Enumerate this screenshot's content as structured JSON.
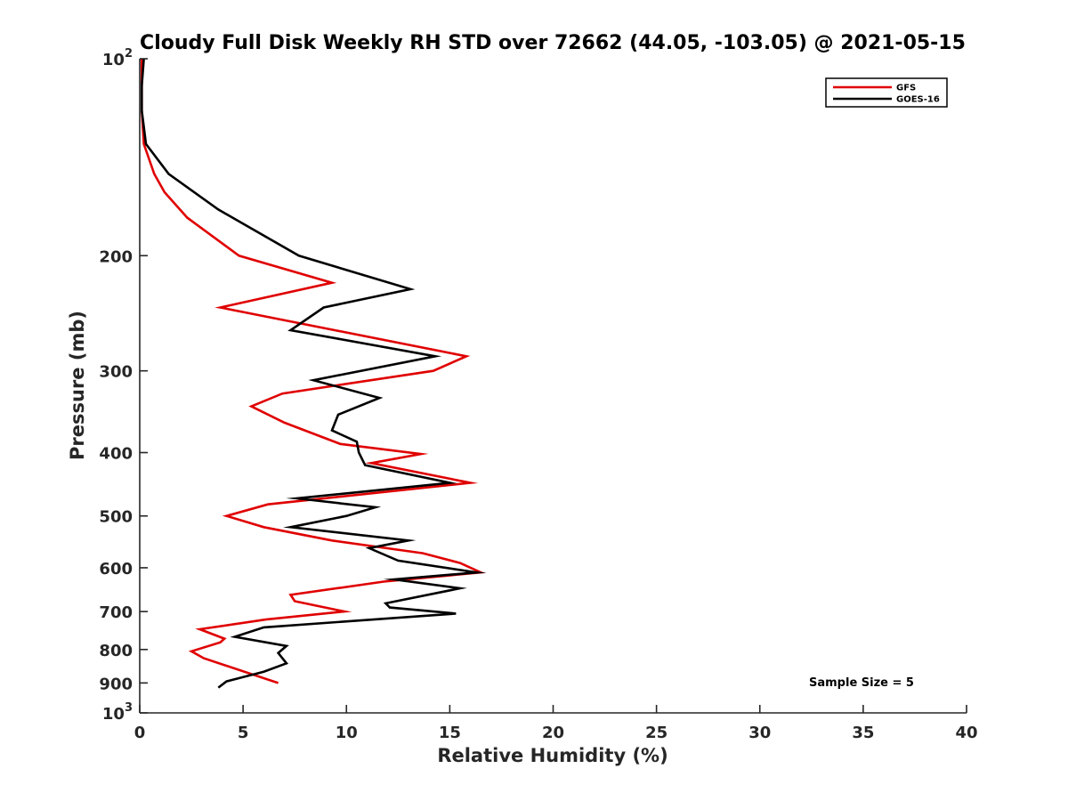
{
  "chart_data": {
    "type": "line",
    "title": "Cloudy Full Disk Weekly RH STD over 72662 (44.05, -103.05) @ 2021-05-15",
    "xlabel": "Relative Humidity (%)",
    "ylabel": "Pressure (mb)",
    "xlim": [
      0,
      40
    ],
    "ylim": [
      100,
      1000
    ],
    "yscale": "log",
    "y_reversed": true,
    "x_ticks": [
      0,
      5,
      10,
      15,
      20,
      25,
      30,
      35,
      40
    ],
    "x_tick_labels": [
      "0",
      "5",
      "10",
      "15",
      "20",
      "25",
      "30",
      "35",
      "40"
    ],
    "y_ticks": [
      100,
      200,
      300,
      400,
      500,
      600,
      700,
      800,
      900,
      1000
    ],
    "y_tick_labels": [
      {
        "base": "10",
        "sup": "2"
      },
      {
        "base": "200",
        "sup": ""
      },
      {
        "base": "300",
        "sup": ""
      },
      {
        "base": "400",
        "sup": ""
      },
      {
        "base": "500",
        "sup": ""
      },
      {
        "base": "600",
        "sup": ""
      },
      {
        "base": "700",
        "sup": ""
      },
      {
        "base": "800",
        "sup": ""
      },
      {
        "base": "900",
        "sup": ""
      },
      {
        "base": "10",
        "sup": "3"
      }
    ],
    "grid": false,
    "legend_position": "top-right",
    "annotation": "Sample Size = 5",
    "series": [
      {
        "name": "GFS",
        "color": "#e00000",
        "points": [
          [
            0.1,
            100
          ],
          [
            0.1,
            110
          ],
          [
            0.1,
            120
          ],
          [
            0.2,
            135
          ],
          [
            0.7,
            150
          ],
          [
            1.2,
            160
          ],
          [
            2.3,
            175
          ],
          [
            4.8,
            200
          ],
          [
            9.3,
            220
          ],
          [
            3.9,
            240
          ],
          [
            15.8,
            285
          ],
          [
            14.2,
            300
          ],
          [
            6.9,
            325
          ],
          [
            5.4,
            340
          ],
          [
            7.0,
            360
          ],
          [
            9.7,
            388
          ],
          [
            13.6,
            402
          ],
          [
            11.2,
            415
          ],
          [
            16.0,
            445
          ],
          [
            6.2,
            480
          ],
          [
            4.2,
            500
          ],
          [
            6.0,
            520
          ],
          [
            9.3,
            545
          ],
          [
            13.7,
            570
          ],
          [
            15.5,
            590
          ],
          [
            16.5,
            610
          ],
          [
            11.8,
            630
          ],
          [
            7.3,
            660
          ],
          [
            7.5,
            675
          ],
          [
            9.9,
            700
          ],
          [
            6.1,
            720
          ],
          [
            2.9,
            745
          ],
          [
            4.1,
            770
          ],
          [
            3.9,
            780
          ],
          [
            2.5,
            805
          ],
          [
            3.1,
            825
          ],
          [
            6.7,
            900
          ]
        ]
      },
      {
        "name": "GOES-16",
        "color": "#000000",
        "points": [
          [
            0.2,
            100
          ],
          [
            0.1,
            110
          ],
          [
            0.1,
            120
          ],
          [
            0.3,
            135
          ],
          [
            1.4,
            150
          ],
          [
            3.8,
            170
          ],
          [
            7.7,
            200
          ],
          [
            13.1,
            225
          ],
          [
            8.9,
            240
          ],
          [
            7.3,
            260
          ],
          [
            14.3,
            285
          ],
          [
            8.4,
            310
          ],
          [
            11.6,
            330
          ],
          [
            9.6,
            350
          ],
          [
            9.3,
            370
          ],
          [
            10.5,
            385
          ],
          [
            10.6,
            400
          ],
          [
            10.9,
            418
          ],
          [
            15.0,
            445
          ],
          [
            7.6,
            470
          ],
          [
            11.4,
            485
          ],
          [
            10.0,
            500
          ],
          [
            7.3,
            520
          ],
          [
            13.0,
            545
          ],
          [
            11.1,
            560
          ],
          [
            12.5,
            585
          ],
          [
            16.3,
            610
          ],
          [
            12.3,
            625
          ],
          [
            15.5,
            645
          ],
          [
            11.9,
            680
          ],
          [
            12.1,
            690
          ],
          [
            15.3,
            705
          ],
          [
            6.0,
            740
          ],
          [
            4.6,
            765
          ],
          [
            7.1,
            790
          ],
          [
            6.7,
            810
          ],
          [
            7.1,
            840
          ],
          [
            6.0,
            865
          ],
          [
            4.2,
            895
          ],
          [
            3.8,
            915
          ]
        ]
      }
    ]
  }
}
